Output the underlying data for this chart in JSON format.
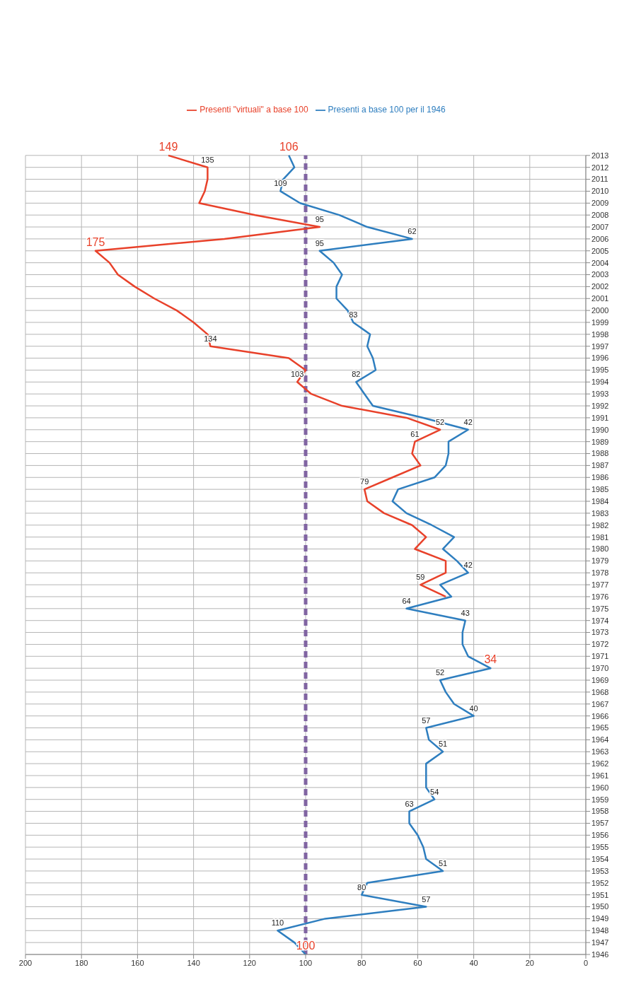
{
  "chart_data": {
    "type": "line",
    "categories": [
      "2013",
      "2012",
      "2011",
      "2010",
      "2009",
      "2008",
      "2007",
      "2006",
      "2005",
      "2004",
      "2003",
      "2002",
      "2001",
      "2000",
      "1999",
      "1998",
      "1997",
      "1996",
      "1995",
      "1994",
      "1993",
      "1992",
      "1991",
      "1990",
      "1989",
      "1988",
      "1987",
      "1986",
      "1985",
      "1984",
      "1983",
      "1982",
      "1981",
      "1980",
      "1979",
      "1978",
      "1977",
      "1976",
      "1975",
      "1974",
      "1973",
      "1972",
      "1971",
      "1970",
      "1969",
      "1968",
      "1967",
      "1966",
      "1965",
      "1964",
      "1963",
      "1962",
      "1961",
      "1960",
      "1959",
      "1958",
      "1957",
      "1956",
      "1955",
      "1954",
      "1953",
      "1952",
      "1951",
      "1950",
      "1949",
      "1948",
      "1947",
      "1946"
    ],
    "series": [
      {
        "name": "Presenti a base 100 per il 1946",
        "color": "#2e7ebf",
        "values": [
          106,
          104,
          108,
          109,
          102,
          88,
          78,
          62,
          95,
          90,
          87,
          89,
          89,
          85,
          83,
          77,
          78,
          76,
          75,
          82,
          79,
          76,
          58,
          42,
          49,
          49,
          50,
          54,
          67,
          69,
          64,
          55,
          47,
          51,
          46,
          42,
          52,
          48,
          64,
          43,
          44,
          44,
          42,
          34,
          52,
          50,
          47,
          40,
          57,
          56,
          51,
          57,
          57,
          57,
          54,
          63,
          63,
          60,
          58,
          57,
          51,
          78,
          80,
          57,
          93,
          110,
          104,
          100
        ],
        "value_labels": [
          null,
          null,
          null,
          "109",
          null,
          null,
          null,
          "62",
          "95",
          null,
          null,
          null,
          null,
          null,
          "83",
          null,
          null,
          null,
          null,
          "82",
          null,
          null,
          null,
          "42",
          null,
          null,
          null,
          null,
          null,
          null,
          null,
          null,
          null,
          null,
          null,
          "42",
          null,
          null,
          "64",
          "43",
          null,
          null,
          null,
          null,
          "52",
          null,
          null,
          "40",
          "57",
          null,
          "51",
          null,
          null,
          null,
          "54",
          "63",
          null,
          null,
          null,
          null,
          "51",
          null,
          "80",
          "57",
          null,
          "110",
          null,
          null
        ]
      },
      {
        "name": "Presenti \"virtuali\" a base 100",
        "color": "#e8412a",
        "values": [
          149,
          135,
          135,
          136,
          138,
          118,
          95,
          129,
          175,
          170,
          167,
          161,
          154,
          146,
          140,
          135,
          134,
          106,
          100,
          103,
          98,
          87,
          64,
          52,
          61,
          62,
          59,
          69,
          79,
          78,
          72,
          62,
          57,
          61,
          50,
          50,
          59,
          50,
          null,
          null,
          null,
          null,
          null,
          null,
          null,
          null,
          null,
          null,
          null,
          null,
          null,
          null,
          null,
          null,
          null,
          null,
          null,
          null,
          null,
          null,
          null,
          null,
          null,
          null,
          null,
          null,
          null,
          null
        ],
        "value_labels": [
          null,
          "135",
          null,
          null,
          null,
          null,
          "95",
          null,
          null,
          null,
          null,
          null,
          null,
          null,
          null,
          null,
          "134",
          null,
          null,
          "103",
          null,
          null,
          null,
          "52",
          "61",
          null,
          null,
          null,
          "79",
          null,
          null,
          null,
          null,
          null,
          null,
          null,
          "59",
          null,
          null,
          null,
          null,
          null,
          null,
          null,
          null,
          null,
          null,
          null,
          null,
          null,
          null,
          null,
          null,
          null,
          null,
          null,
          null,
          null,
          null,
          null,
          null,
          null,
          null,
          null,
          null,
          null,
          null,
          null
        ]
      }
    ],
    "annotations": [
      {
        "text": "100",
        "x": 100,
        "y": "1946"
      },
      {
        "text": "34",
        "x": 34,
        "y": "1970"
      },
      {
        "text": "106",
        "x": 106,
        "y": "2013"
      },
      {
        "text": "175",
        "x": 175,
        "y": "2005"
      },
      {
        "text": "149",
        "x": 149,
        "y": "2013"
      }
    ],
    "ref_lines": [
      {
        "axis": "x",
        "value": 100,
        "color": "#8064a2",
        "line_style": "dashed"
      }
    ],
    "orientation": "horizontal",
    "xlim": [
      200,
      0
    ],
    "xticks": [
      0,
      20,
      40,
      60,
      80,
      100,
      120,
      140,
      160,
      180,
      200
    ],
    "grid": true,
    "legend": "top"
  }
}
